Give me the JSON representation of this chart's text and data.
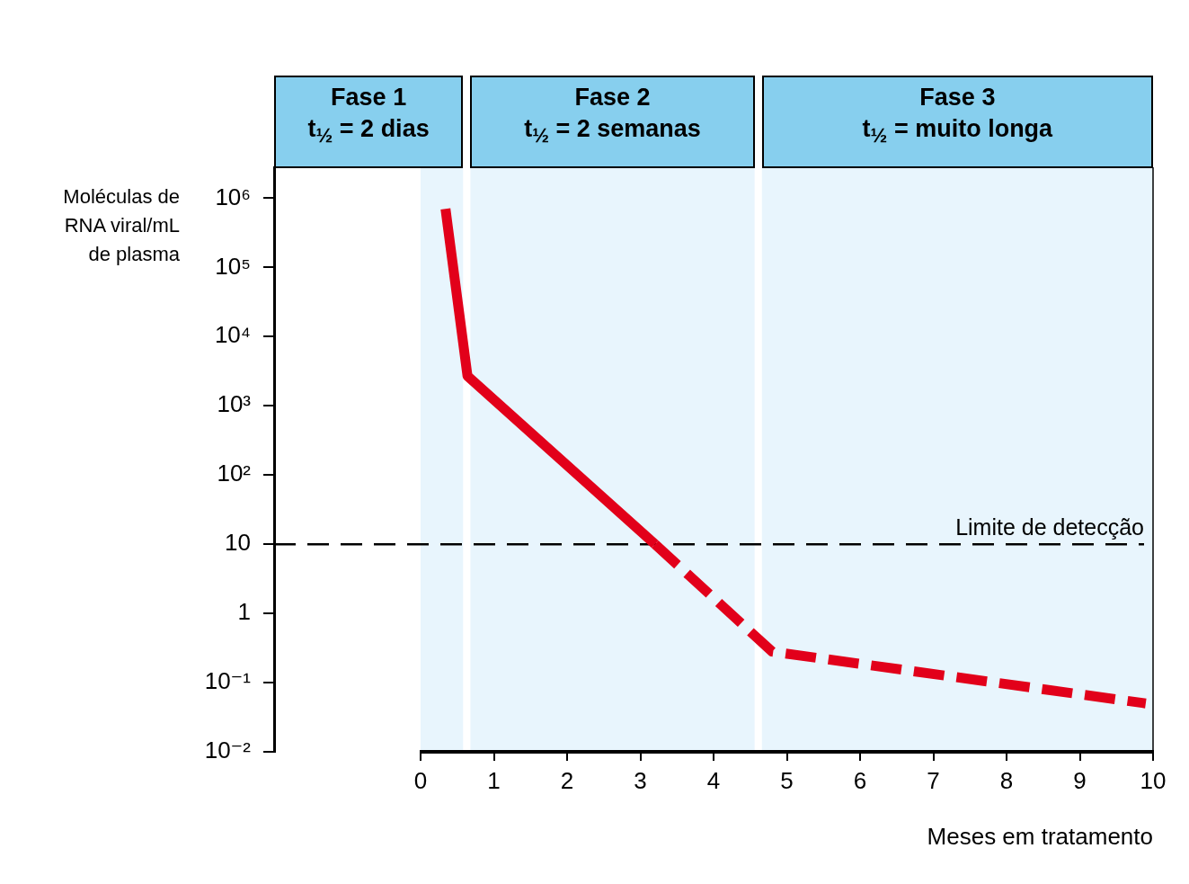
{
  "chart_data": {
    "type": "line",
    "ylabel": "Moléculas de\nRNA viral/mL\nde plasma",
    "xlabel": "Meses em tratamento",
    "series": [
      {
        "color": "#e2001a",
        "line_style": "solid",
        "x": [
          0.34,
          0.64,
          3.2
        ],
        "values": [
          700000,
          2700,
          10
        ]
      },
      {
        "color": "#e2001a",
        "line_style": "dashed",
        "x": [
          3.2,
          4.8,
          9.9
        ],
        "values": [
          10,
          0.28,
          0.05
        ]
      }
    ],
    "xlim": [
      -2,
      10
    ],
    "xticks": [
      0,
      1,
      2,
      3,
      4,
      5,
      6,
      7,
      8,
      9,
      10
    ],
    "ylim": [
      0.01,
      2800000
    ],
    "yticks": [
      {
        "value": 1000000,
        "label": "10⁶"
      },
      {
        "value": 100000,
        "label": "10⁵"
      },
      {
        "value": 10000,
        "label": "10⁴"
      },
      {
        "value": 1000,
        "label": "10³"
      },
      {
        "value": 100,
        "label": "10²"
      },
      10,
      1,
      {
        "value": 0.1,
        "label": "10⁻¹"
      },
      {
        "value": 0.01,
        "label": "10⁻²"
      }
    ],
    "log": true,
    "marker": "none",
    "ref_lines": [
      {
        "axis": "y",
        "value": 10,
        "label": "Limite de detecção",
        "line_style": "dashed",
        "color": "#000000"
      }
    ],
    "bands": [
      {
        "axis": "x",
        "from": 0,
        "to": 0.58,
        "label": "Fase 1\nt$_{½}$ = 2 dias",
        "color": "#e8f5fd"
      },
      {
        "axis": "x",
        "from": 0.68,
        "to": 4.56,
        "label": "Fase 2\nt$_{½}$ = 2 semanas",
        "color": "#e8f5fd"
      },
      {
        "axis": "x",
        "from": 4.66,
        "to": 10,
        "label": "Fase 3\nt$_{½}$ = muito longa",
        "color": "#e8f5fd"
      }
    ]
  }
}
